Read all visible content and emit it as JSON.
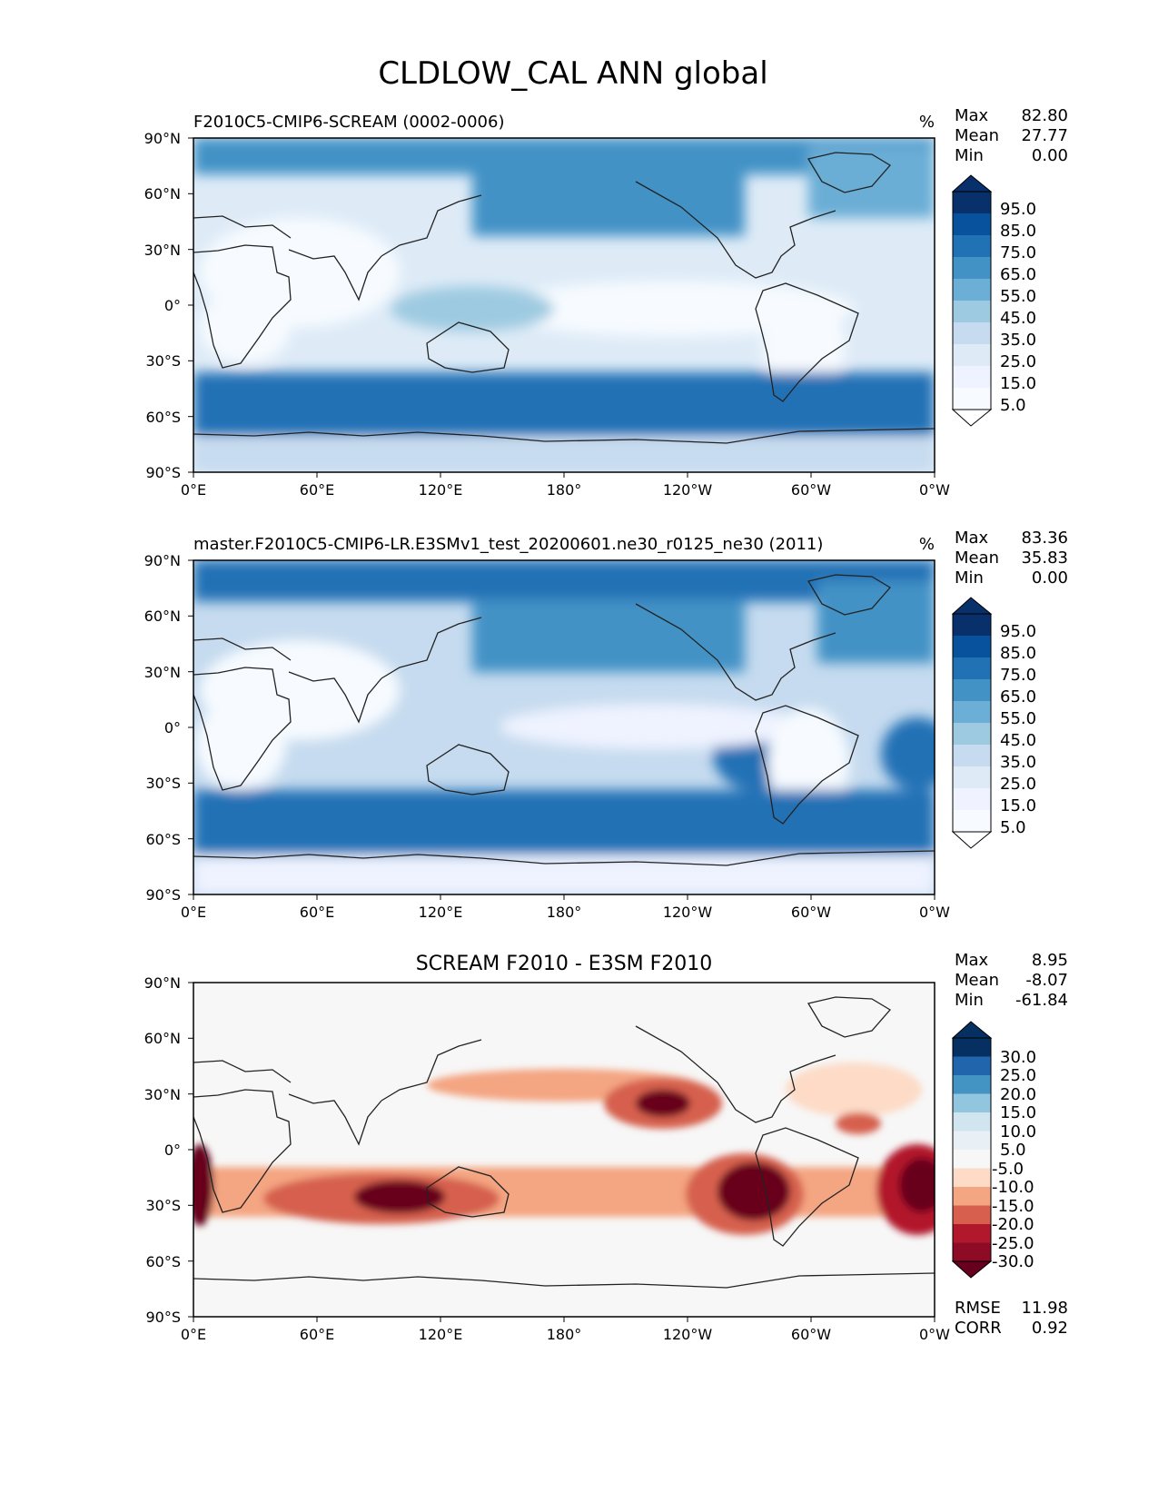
{
  "figure": {
    "title": "CLDLOW_CAL ANN global"
  },
  "colors": {
    "land_outline": "#222222",
    "frame": "#000000",
    "blues": [
      "#f7fbff",
      "#deebf7",
      "#c6dbef",
      "#9ecae1",
      "#6baed6",
      "#4292c6",
      "#2171b5",
      "#08519c",
      "#08306b"
    ],
    "diverging": [
      "#67001f",
      "#b2182b",
      "#d6604d",
      "#f4a582",
      "#fddbc7",
      "#f7f7f7",
      "#d1e5f0",
      "#92c5de",
      "#4393c3",
      "#2166ac",
      "#053061"
    ]
  },
  "chart_data": [
    {
      "type": "heatmap",
      "title": "F2010C5-CMIP6-SCREAM (0002-0006)",
      "units": "%",
      "stats": {
        "max_label": "Max",
        "max": "82.80",
        "mean_label": "Mean",
        "mean": "27.77",
        "min_label": "Min",
        "min": "0.00"
      },
      "x_ticks": [
        "0°E",
        "60°E",
        "120°E",
        "180°",
        "120°W",
        "60°W",
        "0°W"
      ],
      "y_ticks": [
        "90°N",
        "60°N",
        "30°N",
        "0°",
        "30°S",
        "60°S",
        "90°S"
      ],
      "colorbar": {
        "levels": [
          "95.0",
          "85.0",
          "75.0",
          "65.0",
          "55.0",
          "45.0",
          "35.0",
          "25.0",
          "15.0",
          "5.0"
        ],
        "palette": "blues"
      },
      "xlim": [
        0,
        360
      ],
      "ylim": [
        -90,
        90
      ]
    },
    {
      "type": "heatmap",
      "title": "master.F2010C5-CMIP6-LR.E3SMv1_test_20200601.ne30_r0125_ne30 (2011)",
      "units": "%",
      "stats": {
        "max_label": "Max",
        "max": "83.36",
        "mean_label": "Mean",
        "mean": "35.83",
        "min_label": "Min",
        "min": "0.00"
      },
      "x_ticks": [
        "0°E",
        "60°E",
        "120°E",
        "180°",
        "120°W",
        "60°W",
        "0°W"
      ],
      "y_ticks": [
        "90°N",
        "60°N",
        "30°N",
        "0°",
        "30°S",
        "60°S",
        "90°S"
      ],
      "colorbar": {
        "levels": [
          "95.0",
          "85.0",
          "75.0",
          "65.0",
          "55.0",
          "45.0",
          "35.0",
          "25.0",
          "15.0",
          "5.0"
        ],
        "palette": "blues"
      },
      "xlim": [
        0,
        360
      ],
      "ylim": [
        -90,
        90
      ]
    },
    {
      "type": "heatmap",
      "title": "SCREAM F2010 - E3SM F2010",
      "units": "",
      "stats": {
        "max_label": "Max",
        "max": "8.95",
        "mean_label": "Mean",
        "mean": "-8.07",
        "min_label": "Min",
        "min": "-61.84"
      },
      "metrics": {
        "rmse_label": "RMSE",
        "rmse": "11.98",
        "corr_label": "CORR",
        "corr": "0.92"
      },
      "x_ticks": [
        "0°E",
        "60°E",
        "120°E",
        "180°",
        "120°W",
        "60°W",
        "0°W"
      ],
      "y_ticks": [
        "90°N",
        "60°N",
        "30°N",
        "0°",
        "30°S",
        "60°S",
        "90°S"
      ],
      "colorbar": {
        "levels": [
          "30.0",
          "25.0",
          "20.0",
          "15.0",
          "10.0",
          "5.0",
          "-5.0",
          "-10.0",
          "-15.0",
          "-20.0",
          "-25.0",
          "-30.0"
        ],
        "palette": "diverging"
      },
      "xlim": [
        0,
        360
      ],
      "ylim": [
        -90,
        90
      ]
    }
  ]
}
